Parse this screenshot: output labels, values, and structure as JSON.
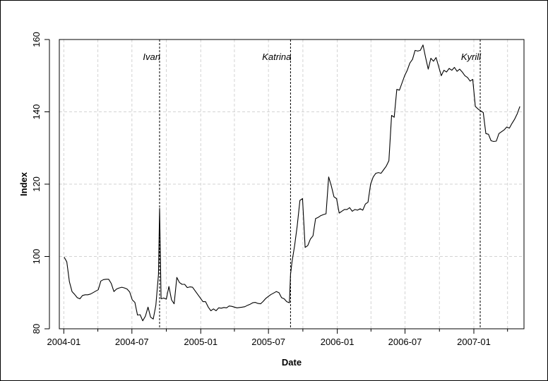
{
  "chart_data": {
    "type": "line",
    "title": "",
    "xlabel": "Date",
    "ylabel": "Index",
    "xlim": [
      "2003-12-20",
      "2007-05-15"
    ],
    "ylim": [
      80,
      160
    ],
    "grid": true,
    "x_ticks": [
      "2004-01",
      "2004-07",
      "2005-01",
      "2005-07",
      "2006-01",
      "2006-07",
      "2007-01"
    ],
    "y_ticks": [
      80,
      100,
      120,
      140,
      160
    ],
    "events": [
      {
        "label": "Ivan",
        "date": "2004-09-13"
      },
      {
        "label": "Katrina",
        "date": "2005-08-29"
      },
      {
        "label": "Kyrill",
        "date": "2007-01-18"
      }
    ],
    "series": [
      {
        "color": "#000000",
        "points": [
          [
            "2004-01-02",
            99.8
          ],
          [
            "2004-01-09",
            98.5
          ],
          [
            "2004-01-16",
            93.0
          ],
          [
            "2004-01-23",
            90.3
          ],
          [
            "2004-01-30",
            89.5
          ],
          [
            "2004-02-06",
            88.6
          ],
          [
            "2004-02-13",
            88.3
          ],
          [
            "2004-02-20",
            89.2
          ],
          [
            "2004-02-27",
            89.4
          ],
          [
            "2004-03-05",
            89.4
          ],
          [
            "2004-03-12",
            89.6
          ],
          [
            "2004-03-19",
            90.0
          ],
          [
            "2004-03-26",
            90.4
          ],
          [
            "2004-04-02",
            90.8
          ],
          [
            "2004-04-09",
            93.2
          ],
          [
            "2004-04-16",
            93.6
          ],
          [
            "2004-04-23",
            93.7
          ],
          [
            "2004-04-30",
            93.7
          ],
          [
            "2004-05-07",
            92.5
          ],
          [
            "2004-05-14",
            90.3
          ],
          [
            "2004-05-21",
            91.0
          ],
          [
            "2004-05-28",
            91.3
          ],
          [
            "2004-06-04",
            91.5
          ],
          [
            "2004-06-11",
            91.3
          ],
          [
            "2004-06-18",
            91.0
          ],
          [
            "2004-06-25",
            90.2
          ],
          [
            "2004-07-02",
            88.0
          ],
          [
            "2004-07-09",
            87.3
          ],
          [
            "2004-07-16",
            83.8
          ],
          [
            "2004-07-23",
            83.9
          ],
          [
            "2004-07-30",
            82.2
          ],
          [
            "2004-08-06",
            83.5
          ],
          [
            "2004-08-13",
            86.0
          ],
          [
            "2004-08-20",
            83.2
          ],
          [
            "2004-08-27",
            82.7
          ],
          [
            "2004-09-03",
            86.5
          ],
          [
            "2004-09-10",
            95.0
          ],
          [
            "2004-09-13",
            113.3
          ],
          [
            "2004-09-17",
            88.3
          ],
          [
            "2004-09-24",
            88.5
          ],
          [
            "2004-10-01",
            88.2
          ],
          [
            "2004-10-08",
            91.7
          ],
          [
            "2004-10-15",
            88.0
          ],
          [
            "2004-10-22",
            86.9
          ],
          [
            "2004-10-29",
            94.2
          ],
          [
            "2004-11-05",
            92.8
          ],
          [
            "2004-11-12",
            92.3
          ],
          [
            "2004-11-19",
            92.3
          ],
          [
            "2004-11-26",
            91.4
          ],
          [
            "2004-12-03",
            91.6
          ],
          [
            "2004-12-10",
            91.5
          ],
          [
            "2004-12-17",
            90.5
          ],
          [
            "2004-12-24",
            89.5
          ],
          [
            "2004-12-31",
            88.5
          ],
          [
            "2005-01-07",
            87.5
          ],
          [
            "2005-01-14",
            87.5
          ],
          [
            "2005-01-21",
            86.0
          ],
          [
            "2005-01-28",
            85.0
          ],
          [
            "2005-02-04",
            85.5
          ],
          [
            "2005-02-11",
            85.0
          ],
          [
            "2005-02-18",
            85.8
          ],
          [
            "2005-02-25",
            85.7
          ],
          [
            "2005-03-04",
            85.9
          ],
          [
            "2005-03-11",
            85.8
          ],
          [
            "2005-03-18",
            86.3
          ],
          [
            "2005-03-25",
            86.2
          ],
          [
            "2005-04-01",
            86.0
          ],
          [
            "2005-04-08",
            85.8
          ],
          [
            "2005-04-15",
            85.9
          ],
          [
            "2005-04-22",
            86.0
          ],
          [
            "2005-04-29",
            86.1
          ],
          [
            "2005-05-06",
            86.5
          ],
          [
            "2005-05-13",
            86.8
          ],
          [
            "2005-05-20",
            87.2
          ],
          [
            "2005-05-27",
            87.3
          ],
          [
            "2005-06-03",
            87.0
          ],
          [
            "2005-06-10",
            86.9
          ],
          [
            "2005-06-17",
            87.6
          ],
          [
            "2005-06-24",
            88.4
          ],
          [
            "2005-07-01",
            89.0
          ],
          [
            "2005-07-08",
            89.5
          ],
          [
            "2005-07-15",
            89.9
          ],
          [
            "2005-07-22",
            90.3
          ],
          [
            "2005-07-29",
            90.0
          ],
          [
            "2005-08-05",
            88.6
          ],
          [
            "2005-08-12",
            88.3
          ],
          [
            "2005-08-19",
            87.5
          ],
          [
            "2005-08-26",
            87.2
          ],
          [
            "2005-08-29",
            95.0
          ],
          [
            "2005-09-02",
            98.5
          ],
          [
            "2005-09-09",
            103.0
          ],
          [
            "2005-09-16",
            108.5
          ],
          [
            "2005-09-23",
            115.5
          ],
          [
            "2005-09-30",
            116.0
          ],
          [
            "2005-10-07",
            102.5
          ],
          [
            "2005-10-14",
            103.0
          ],
          [
            "2005-10-21",
            104.8
          ],
          [
            "2005-10-28",
            105.7
          ],
          [
            "2005-11-04",
            110.5
          ],
          [
            "2005-11-11",
            110.8
          ],
          [
            "2005-11-18",
            111.3
          ],
          [
            "2005-11-25",
            111.6
          ],
          [
            "2005-12-02",
            111.8
          ],
          [
            "2005-12-09",
            122.0
          ],
          [
            "2005-12-16",
            119.5
          ],
          [
            "2005-12-23",
            116.5
          ],
          [
            "2005-12-30",
            116.0
          ],
          [
            "2006-01-06",
            112.0
          ],
          [
            "2006-01-13",
            112.5
          ],
          [
            "2006-01-20",
            113.0
          ],
          [
            "2006-01-27",
            113.0
          ],
          [
            "2006-02-03",
            113.5
          ],
          [
            "2006-02-10",
            112.5
          ],
          [
            "2006-02-17",
            113.0
          ],
          [
            "2006-02-24",
            112.8
          ],
          [
            "2006-03-03",
            113.2
          ],
          [
            "2006-03-10",
            112.8
          ],
          [
            "2006-03-17",
            114.5
          ],
          [
            "2006-03-24",
            115.0
          ],
          [
            "2006-03-31",
            120.0
          ],
          [
            "2006-04-07",
            122.0
          ],
          [
            "2006-04-14",
            123.0
          ],
          [
            "2006-04-21",
            123.2
          ],
          [
            "2006-04-28",
            123.0
          ],
          [
            "2006-05-05",
            124.0
          ],
          [
            "2006-05-12",
            125.0
          ],
          [
            "2006-05-19",
            126.5
          ],
          [
            "2006-05-26",
            139.0
          ],
          [
            "2006-06-02",
            138.5
          ],
          [
            "2006-06-09",
            146.2
          ],
          [
            "2006-06-16",
            146.0
          ],
          [
            "2006-06-23",
            148.0
          ],
          [
            "2006-06-30",
            150.0
          ],
          [
            "2006-07-07",
            151.5
          ],
          [
            "2006-07-14",
            153.5
          ],
          [
            "2006-07-21",
            154.5
          ],
          [
            "2006-07-28",
            157.0
          ],
          [
            "2006-08-04",
            156.8
          ],
          [
            "2006-08-11",
            157.0
          ],
          [
            "2006-08-18",
            158.5
          ],
          [
            "2006-08-25",
            155.0
          ],
          [
            "2006-09-01",
            151.8
          ],
          [
            "2006-09-08",
            154.8
          ],
          [
            "2006-09-15",
            154.0
          ],
          [
            "2006-09-22",
            155.0
          ],
          [
            "2006-09-29",
            152.5
          ],
          [
            "2006-10-06",
            150.0
          ],
          [
            "2006-10-13",
            151.5
          ],
          [
            "2006-10-20",
            151.0
          ],
          [
            "2006-10-27",
            152.0
          ],
          [
            "2006-11-03",
            151.5
          ],
          [
            "2006-11-10",
            152.3
          ],
          [
            "2006-11-17",
            151.2
          ],
          [
            "2006-11-24",
            151.8
          ],
          [
            "2006-12-01",
            151.0
          ],
          [
            "2006-12-08",
            150.0
          ],
          [
            "2006-12-15",
            149.5
          ],
          [
            "2006-12-22",
            148.5
          ],
          [
            "2006-12-29",
            149.0
          ],
          [
            "2007-01-05",
            141.5
          ],
          [
            "2007-01-12",
            140.8
          ],
          [
            "2007-01-19",
            140.3
          ],
          [
            "2007-01-26",
            139.8
          ],
          [
            "2007-02-02",
            134.0
          ],
          [
            "2007-02-09",
            133.8
          ],
          [
            "2007-02-16",
            132.0
          ],
          [
            "2007-02-23",
            131.8
          ],
          [
            "2007-03-02",
            131.9
          ],
          [
            "2007-03-09",
            134.0
          ],
          [
            "2007-03-16",
            134.5
          ],
          [
            "2007-03-23",
            135.0
          ],
          [
            "2007-03-30",
            135.8
          ],
          [
            "2007-04-06",
            135.5
          ],
          [
            "2007-04-13",
            136.8
          ],
          [
            "2007-04-20",
            138.0
          ],
          [
            "2007-04-27",
            139.5
          ],
          [
            "2007-05-04",
            141.5
          ]
        ]
      }
    ]
  }
}
